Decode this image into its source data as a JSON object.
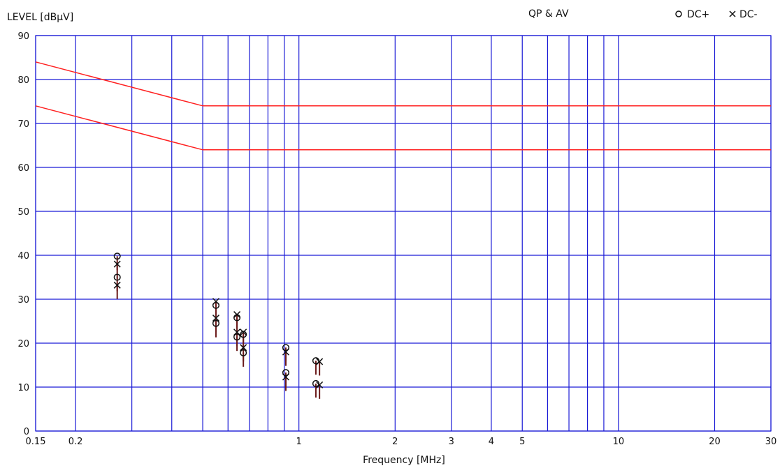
{
  "chart_data": {
    "type": "scatter",
    "title": "QP & AV",
    "xlabel": "Frequency [MHz]",
    "ylabel": "LEVEL [dBμV]",
    "x_scale": "log",
    "xlim": [
      0.15,
      30
    ],
    "ylim": [
      0,
      90
    ],
    "grid": true,
    "legend_position": "top-right",
    "x_ticks": [
      {
        "v": 0.15,
        "label": "0.15"
      },
      {
        "v": 0.2,
        "label": "0.2"
      },
      {
        "v": 1,
        "label": "1"
      },
      {
        "v": 2,
        "label": "2"
      },
      {
        "v": 3,
        "label": "3"
      },
      {
        "v": 4,
        "label": "4"
      },
      {
        "v": 5,
        "label": "5"
      },
      {
        "v": 10,
        "label": "10"
      },
      {
        "v": 20,
        "label": "20"
      },
      {
        "v": 30,
        "label": "30"
      }
    ],
    "x_minor_grid": [
      0.3,
      0.4,
      0.5,
      0.6,
      0.7,
      0.8,
      0.9,
      6,
      7,
      8,
      9
    ],
    "y_ticks": [
      0,
      10,
      20,
      30,
      40,
      50,
      60,
      70,
      80,
      90
    ],
    "colors": {
      "grid": "#1a1ad6",
      "limit": "#ff2020",
      "marker": "#111111",
      "stem": "#6b1a1a"
    },
    "legend": [
      {
        "symbol": "circle",
        "label": "DC+"
      },
      {
        "symbol": "cross",
        "label": "DC-"
      }
    ],
    "limit_lines": [
      {
        "name": "QP",
        "points": [
          [
            0.15,
            84
          ],
          [
            0.5,
            74
          ],
          [
            30,
            74
          ]
        ]
      },
      {
        "name": "AV",
        "points": [
          [
            0.15,
            74
          ],
          [
            0.5,
            64
          ],
          [
            30,
            64
          ]
        ]
      }
    ],
    "series": [
      {
        "name": "DC+",
        "marker": "circle",
        "points": [
          {
            "x": 0.27,
            "y": 39.8
          },
          {
            "x": 0.27,
            "y": 35.0
          },
          {
            "x": 0.55,
            "y": 28.6
          },
          {
            "x": 0.55,
            "y": 24.5
          },
          {
            "x": 0.64,
            "y": 25.8
          },
          {
            "x": 0.64,
            "y": 21.4
          },
          {
            "x": 0.67,
            "y": 22.0
          },
          {
            "x": 0.67,
            "y": 17.8
          },
          {
            "x": 0.91,
            "y": 19.0
          },
          {
            "x": 0.91,
            "y": 13.3
          },
          {
            "x": 1.13,
            "y": 16.0
          },
          {
            "x": 1.13,
            "y": 10.8
          }
        ]
      },
      {
        "name": "DC-",
        "marker": "cross",
        "points": [
          {
            "x": 0.27,
            "y": 38.0
          },
          {
            "x": 0.27,
            "y": 33.2
          },
          {
            "x": 0.55,
            "y": 29.5
          },
          {
            "x": 0.55,
            "y": 25.7
          },
          {
            "x": 0.64,
            "y": 26.5
          },
          {
            "x": 0.64,
            "y": 22.5
          },
          {
            "x": 0.67,
            "y": 22.5
          },
          {
            "x": 0.67,
            "y": 19.0
          },
          {
            "x": 0.91,
            "y": 18.0
          },
          {
            "x": 0.91,
            "y": 12.3
          },
          {
            "x": 1.16,
            "y": 15.8
          },
          {
            "x": 1.16,
            "y": 10.5
          }
        ]
      }
    ]
  }
}
